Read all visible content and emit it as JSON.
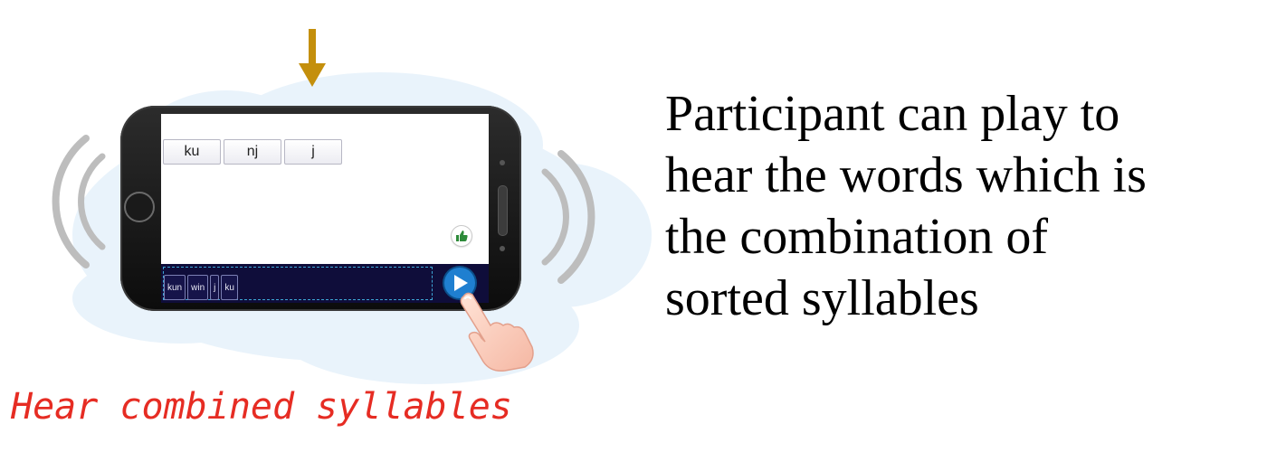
{
  "colors": {
    "caption_red": "#e62c23",
    "arrow_gold": "#c48f0c",
    "screen_bar": "#0f0d3a",
    "play_blue": "#1f7fd0",
    "cloud_blue": "#e9f3fb"
  },
  "phone": {
    "syllable_tiles": [
      "ku",
      "nj",
      "j"
    ],
    "answer_tiles": [
      "kun",
      "win",
      "j",
      "ku"
    ],
    "icons": {
      "confirm": "thumbs-up-icon",
      "play": "play-icon",
      "pointer": "pointing-hand-icon",
      "indicator": "down-arrow-icon",
      "sound": "sound-wave-icon"
    }
  },
  "caption": "Hear combined syllables",
  "description": {
    "lines": [
      "Participant can play to",
      "hear the words which is",
      "the combination of",
      "sorted syllables"
    ]
  }
}
